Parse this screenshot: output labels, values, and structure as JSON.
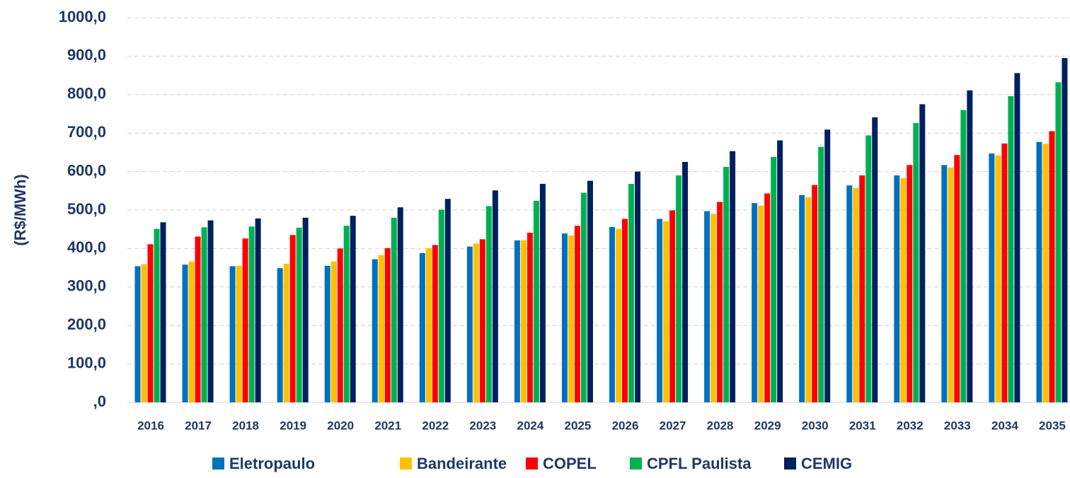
{
  "chart_data": {
    "type": "bar",
    "ylabel": "(R$/MWh)",
    "categories": [
      "2016",
      "2017",
      "2018",
      "2019",
      "2020",
      "2021",
      "2022",
      "2023",
      "2024",
      "2025",
      "2026",
      "2027",
      "2028",
      "2029",
      "2030",
      "2031",
      "2032",
      "2033",
      "2034",
      "2035"
    ],
    "series": [
      {
        "name": "Eletropaulo",
        "color": "#0070c0",
        "values": [
          354,
          358,
          354,
          349,
          355,
          372,
          388,
          405,
          421,
          439,
          456,
          477,
          497,
          518,
          539,
          564,
          590,
          617,
          647,
          677
        ]
      },
      {
        "name": "Bandeirante",
        "color": "#ffc000",
        "values": [
          359,
          366,
          355,
          360,
          366,
          383,
          401,
          413,
          421,
          434,
          451,
          471,
          490,
          511,
          533,
          557,
          583,
          610,
          642,
          672
        ]
      },
      {
        "name": "COPEL",
        "color": "#ff0000",
        "values": [
          411,
          431,
          426,
          435,
          400,
          401,
          409,
          424,
          441,
          459,
          477,
          499,
          521,
          543,
          565,
          590,
          617,
          643,
          673,
          705
        ]
      },
      {
        "name": "CPFL Paulista",
        "color": "#00b050",
        "values": [
          451,
          455,
          457,
          454,
          459,
          480,
          501,
          510,
          524,
          545,
          568,
          590,
          612,
          638,
          664,
          694,
          726,
          760,
          796,
          832
        ]
      },
      {
        "name": "CEMIG",
        "color": "#002060",
        "values": [
          468,
          473,
          478,
          480,
          485,
          507,
          529,
          551,
          568,
          576,
          600,
          625,
          653,
          681,
          709,
          741,
          775,
          811,
          856,
          895
        ]
      }
    ],
    "ylim": [
      0,
      1000
    ],
    "yticks": [
      {
        "value": 0,
        "label": ",0"
      },
      {
        "value": 100,
        "label": "100,0"
      },
      {
        "value": 200,
        "label": "200,0"
      },
      {
        "value": 300,
        "label": "300,0"
      },
      {
        "value": 400,
        "label": "400,0"
      },
      {
        "value": 500,
        "label": "500,0"
      },
      {
        "value": 600,
        "label": "600,0"
      },
      {
        "value": 700,
        "label": "700,0"
      },
      {
        "value": 800,
        "label": "800,0"
      },
      {
        "value": 900,
        "label": "900,0"
      },
      {
        "value": 1000,
        "label": "1000,0"
      }
    ],
    "grid": true,
    "legend": "bottom"
  }
}
